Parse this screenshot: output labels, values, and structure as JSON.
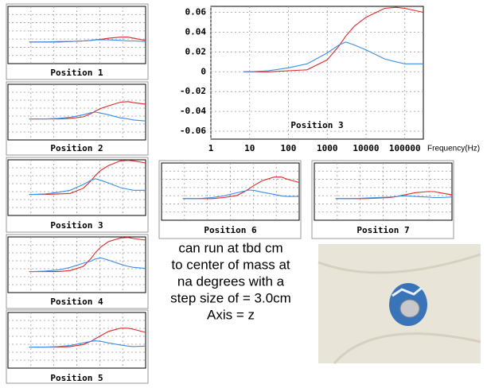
{
  "chart_data": [
    {
      "type": "line",
      "title": "Position 1",
      "log_x": true,
      "grid": true,
      "xlim": [
        1,
        300000
      ],
      "ylim": [
        -0.04,
        0.066
      ],
      "x": [
        7,
        10,
        30,
        100,
        300,
        1000,
        2000,
        3000,
        5000,
        10000,
        30000,
        60000,
        100000,
        300000
      ],
      "series": [
        {
          "color": "#e02828",
          "values": [
            0,
            0,
            0,
            0,
            0.001,
            0.002,
            0.003,
            0.004,
            0.005,
            0.007,
            0.009,
            0.009,
            0.007,
            0.003
          ]
        },
        {
          "color": "#3a8ee8",
          "values": [
            0,
            0,
            0,
            0.001,
            0.001,
            0.002,
            0.003,
            0.004,
            0.004,
            0.004,
            0.003,
            0.002,
            0.002,
            0.001
          ]
        }
      ]
    },
    {
      "type": "line",
      "title": "Position 2",
      "log_x": true,
      "grid": true,
      "xlim": [
        1,
        300000
      ],
      "ylim": [
        -0.04,
        0.066
      ],
      "x": [
        7,
        10,
        30,
        100,
        300,
        1000,
        2000,
        3000,
        5000,
        10000,
        30000,
        60000,
        100000,
        300000
      ],
      "series": [
        {
          "color": "#e02828",
          "values": [
            0,
            0,
            0,
            0,
            0.001,
            0.004,
            0.01,
            0.015,
            0.02,
            0.025,
            0.032,
            0.033,
            0.031,
            0.028
          ]
        },
        {
          "color": "#3a8ee8",
          "values": [
            0,
            0,
            0,
            0.001,
            0.003,
            0.008,
            0.012,
            0.013,
            0.011,
            0.008,
            0.002,
            0,
            -0.002,
            -0.004
          ]
        }
      ]
    },
    {
      "type": "line",
      "title": "Position 3",
      "log_x": true,
      "grid": true,
      "xlim": [
        1,
        300000
      ],
      "ylim": [
        -0.04,
        0.066
      ],
      "x": [
        7,
        10,
        30,
        100,
        300,
        1000,
        2000,
        3000,
        5000,
        10000,
        30000,
        60000,
        100000,
        300000
      ],
      "series": [
        {
          "color": "#e02828",
          "values": [
            0,
            0,
            0,
            0.001,
            0.002,
            0.012,
            0.026,
            0.036,
            0.046,
            0.055,
            0.064,
            0.065,
            0.064,
            0.06
          ]
        },
        {
          "color": "#3a8ee8",
          "values": [
            0,
            0,
            0.001,
            0.004,
            0.008,
            0.019,
            0.027,
            0.03,
            0.027,
            0.022,
            0.013,
            0.01,
            0.008,
            0.008
          ]
        }
      ]
    },
    {
      "type": "line",
      "title": "Position 4",
      "log_x": true,
      "grid": true,
      "xlim": [
        1,
        300000
      ],
      "ylim": [
        -0.04,
        0.066
      ],
      "x": [
        7,
        10,
        30,
        100,
        300,
        1000,
        2000,
        3000,
        5000,
        10000,
        30000,
        60000,
        100000,
        300000
      ],
      "series": [
        {
          "color": "#e02828",
          "values": [
            0,
            0,
            0,
            0,
            0.002,
            0.01,
            0.025,
            0.036,
            0.047,
            0.057,
            0.064,
            0.065,
            0.063,
            0.06
          ]
        },
        {
          "color": "#3a8ee8",
          "values": [
            0,
            0,
            0.001,
            0.003,
            0.008,
            0.016,
            0.02,
            0.024,
            0.026,
            0.022,
            0.014,
            0.01,
            0.008,
            0.006
          ]
        }
      ]
    },
    {
      "type": "line",
      "title": "Position 5",
      "log_x": true,
      "grid": true,
      "xlim": [
        1,
        300000
      ],
      "ylim": [
        -0.04,
        0.066
      ],
      "x": [
        7,
        10,
        30,
        100,
        300,
        1000,
        2000,
        3000,
        5000,
        10000,
        30000,
        60000,
        100000,
        300000
      ],
      "series": [
        {
          "color": "#e02828",
          "values": [
            0,
            0,
            0,
            0,
            0.001,
            0.005,
            0.011,
            0.016,
            0.022,
            0.03,
            0.036,
            0.036,
            0.034,
            0.028
          ]
        },
        {
          "color": "#3a8ee8",
          "values": [
            0,
            0,
            0,
            0.001,
            0.003,
            0.008,
            0.011,
            0.012,
            0.011,
            0.008,
            0.004,
            0.002,
            0.001,
            0.002
          ]
        }
      ]
    },
    {
      "type": "line",
      "title": "Position 6",
      "log_x": true,
      "grid": true,
      "xlim": [
        1,
        300000
      ],
      "ylim": [
        -0.04,
        0.066
      ],
      "x": [
        7,
        10,
        30,
        100,
        300,
        1000,
        2000,
        3000,
        5000,
        10000,
        30000,
        60000,
        100000,
        300000
      ],
      "series": [
        {
          "color": "#e02828",
          "values": [
            0,
            0,
            0,
            0,
            0.002,
            0.006,
            0.013,
            0.018,
            0.025,
            0.033,
            0.04,
            0.04,
            0.036,
            0.03
          ]
        },
        {
          "color": "#3a8ee8",
          "values": [
            0,
            0,
            0,
            0.002,
            0.005,
            0.011,
            0.014,
            0.016,
            0.015,
            0.012,
            0.008,
            0.005,
            0.004,
            0.004
          ]
        }
      ]
    },
    {
      "type": "line",
      "title": "Position 7",
      "log_x": true,
      "grid": true,
      "xlim": [
        1,
        300000
      ],
      "ylim": [
        -0.04,
        0.066
      ],
      "x": [
        7,
        10,
        30,
        100,
        300,
        1000,
        2000,
        3000,
        5000,
        10000,
        30000,
        60000,
        100000,
        300000
      ],
      "series": [
        {
          "color": "#e02828",
          "values": [
            0,
            0,
            0,
            0,
            0.001,
            0.002,
            0.004,
            0.006,
            0.008,
            0.011,
            0.013,
            0.013,
            0.011,
            0.007
          ]
        },
        {
          "color": "#3a8ee8",
          "values": [
            0,
            0,
            0,
            0.001,
            0.002,
            0.003,
            0.004,
            0.005,
            0.005,
            0.004,
            0.003,
            0.002,
            0.002,
            0.003
          ]
        }
      ]
    },
    {
      "type": "line",
      "title": "Position 3",
      "log_x": true,
      "grid": true,
      "xlim": [
        1,
        300000
      ],
      "ylim": [
        -0.068,
        0.066
      ],
      "x_label": "Frequency(Hz)",
      "xticks": [
        1,
        10,
        100,
        1000,
        10000,
        100000
      ],
      "yticks": [
        -0.06,
        -0.04,
        -0.02,
        0,
        0.02,
        0.04,
        0.06
      ],
      "x": [
        7,
        10,
        30,
        100,
        300,
        1000,
        2000,
        3000,
        5000,
        10000,
        30000,
        60000,
        100000,
        300000
      ],
      "series": [
        {
          "color": "#e02828",
          "values": [
            0,
            0,
            0,
            0.001,
            0.002,
            0.012,
            0.026,
            0.036,
            0.046,
            0.055,
            0.064,
            0.065,
            0.064,
            0.06
          ]
        },
        {
          "color": "#3a8ee8",
          "values": [
            0,
            0,
            0.001,
            0.004,
            0.008,
            0.019,
            0.027,
            0.03,
            0.027,
            0.022,
            0.013,
            0.01,
            0.008,
            0.008
          ]
        }
      ]
    }
  ],
  "note": {
    "lines": [
      "can run at tbd cm",
      "to center of mass at",
      "na degrees with a",
      "step size of = 3.0cm",
      "Axis = z"
    ]
  }
}
